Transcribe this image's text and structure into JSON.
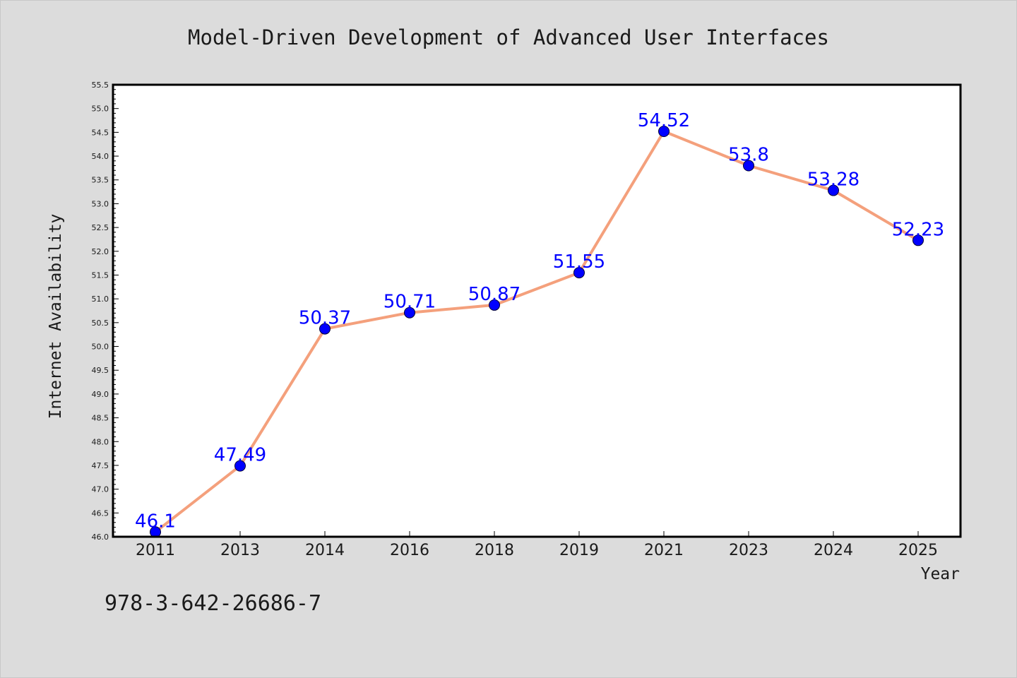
{
  "colors": {
    "background": "#dcdcdc",
    "plot_background": "#ffffff",
    "line": "#f4a07c",
    "marker": "#0000ff",
    "data_label": "#0000ff",
    "text": "#1a1a1a"
  },
  "footer_text": "978-3-642-26686-7",
  "chart_data": {
    "type": "line",
    "title": "Model-Driven Development of Advanced User Interfaces",
    "xlabel": "Year",
    "ylabel": "Internet Availability",
    "categories": [
      "2011",
      "2013",
      "2014",
      "2016",
      "2018",
      "2019",
      "2021",
      "2023",
      "2024",
      "2025"
    ],
    "series": [
      {
        "values": [
          46.1,
          47.49,
          50.37,
          50.71,
          50.87,
          51.55,
          54.52,
          53.8,
          53.28,
          52.23
        ],
        "labels": [
          "46.1",
          "47.49",
          "50.37",
          "50.71",
          "50.87",
          "51.55",
          "54.52",
          "53.8",
          "53.28",
          "52.23"
        ]
      }
    ],
    "ylim": [
      46.0,
      55.5
    ],
    "yticks": [
      "46.0",
      "46.5",
      "47.0",
      "47.5",
      "48.0",
      "48.5",
      "49.0",
      "49.5",
      "50.0",
      "50.5",
      "51.0",
      "51.5",
      "52.0",
      "52.5",
      "53.0",
      "53.5",
      "54.0",
      "54.5",
      "55.0",
      "55.5"
    ],
    "grid": false,
    "legend": "none"
  }
}
